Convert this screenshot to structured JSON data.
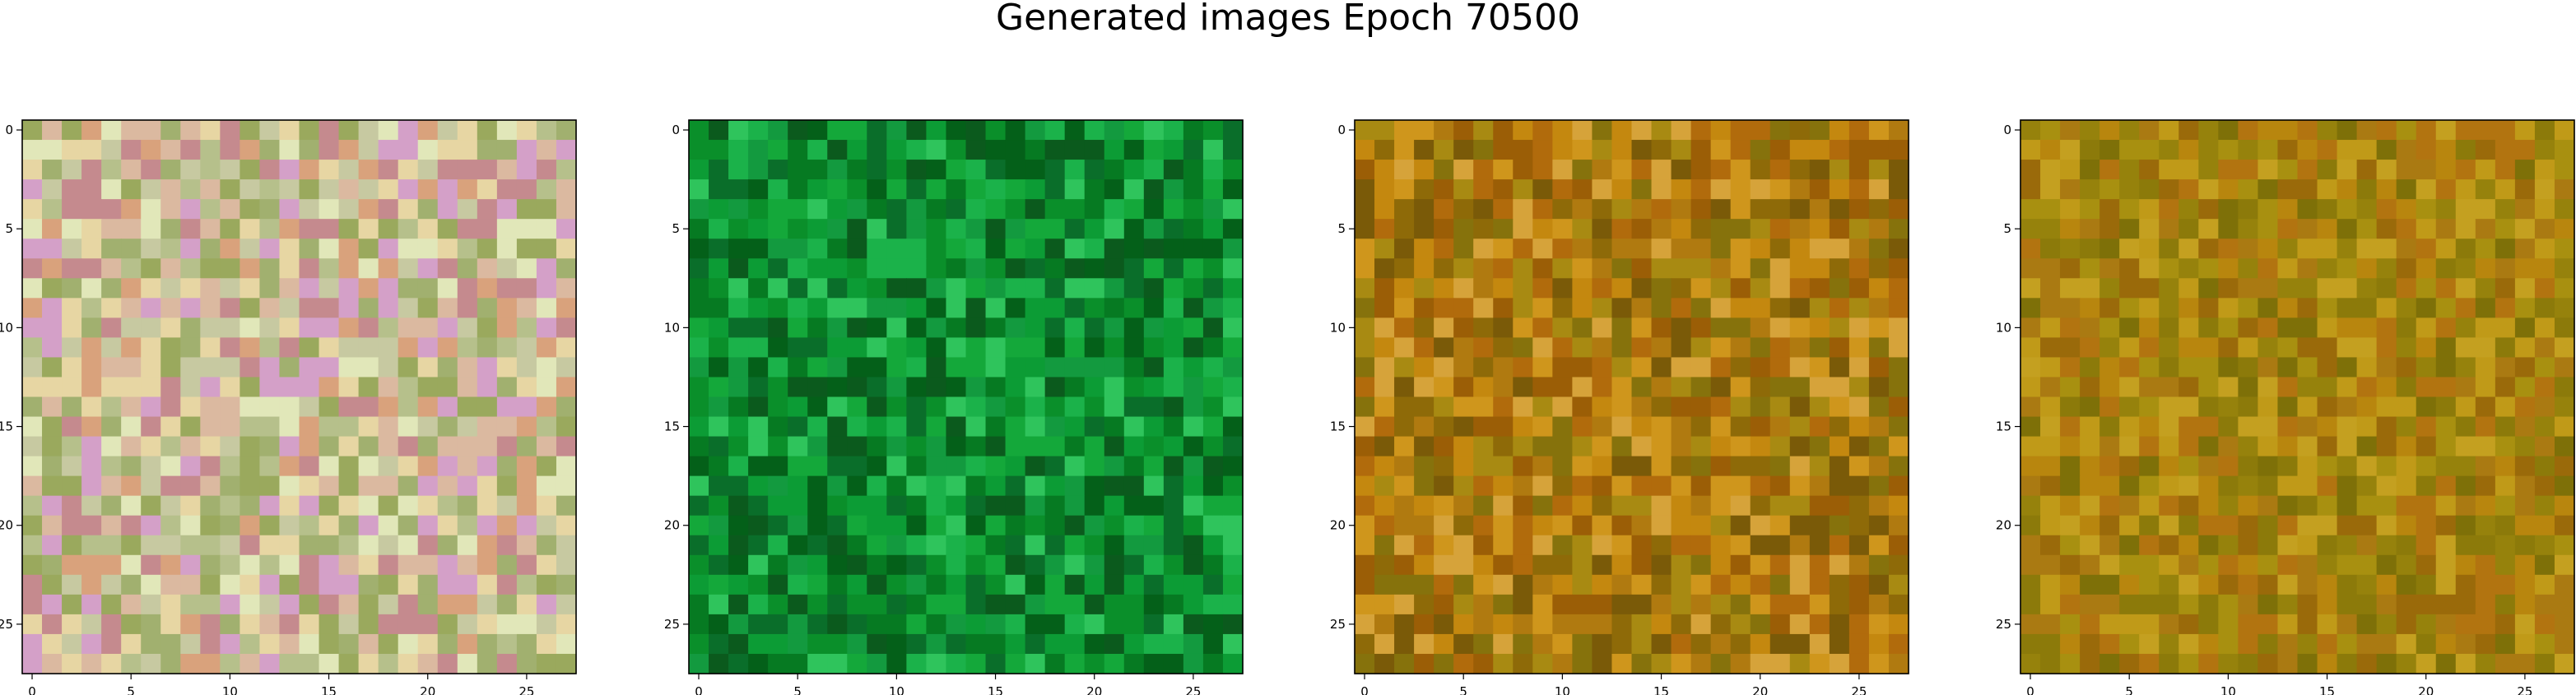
{
  "title": "Generated images Epoch 70500",
  "chart_data": [
    {
      "type": "heatmap",
      "title": "",
      "xlabel": "",
      "ylabel": "",
      "rows": 28,
      "cols": 28,
      "xlim": [
        -0.5,
        27.5
      ],
      "ylim": [
        27.5,
        -0.5
      ],
      "xticks": [
        "0",
        "5",
        "10",
        "15",
        "20",
        "25"
      ],
      "yticks": [
        "0",
        "5",
        "10",
        "15",
        "20",
        "25"
      ],
      "grid": false,
      "palette": [
        "#c7c9a1",
        "#a1b06f",
        "#dbb9a0",
        "#d9a27c",
        "#e7d6a3",
        "#b6c08b",
        "#c58a8e",
        "#9aa95d",
        "#e1e7b9",
        "#d4a0c8"
      ]
    },
    {
      "type": "heatmap",
      "title": "",
      "xlabel": "",
      "ylabel": "",
      "rows": 28,
      "cols": 28,
      "xlim": [
        -0.5,
        27.5
      ],
      "ylim": [
        27.5,
        -0.5
      ],
      "xticks": [
        "0",
        "5",
        "10",
        "15",
        "20",
        "25"
      ],
      "yticks": [
        "0",
        "5",
        "10",
        "15",
        "20",
        "25"
      ],
      "grid": false,
      "palette": [
        "#0a8f2a",
        "#067a22",
        "#14a83a",
        "#046019",
        "#0c9c35",
        "#1bb24a",
        "#0a6e2a",
        "#2fc45c",
        "#0b5a1d",
        "#139a3f"
      ]
    },
    {
      "type": "heatmap",
      "title": "",
      "xlabel": "",
      "ylabel": "",
      "rows": 28,
      "cols": 28,
      "xlim": [
        -0.5,
        27.5
      ],
      "ylim": [
        27.5,
        -0.5
      ],
      "xticks": [
        "0",
        "5",
        "10",
        "15",
        "20",
        "25"
      ],
      "yticks": [
        "0",
        "5",
        "10",
        "15",
        "20",
        "25"
      ],
      "grid": false,
      "palette": [
        "#b07a10",
        "#8e6a08",
        "#c4880f",
        "#9b5e06",
        "#a88a12",
        "#7a5a08",
        "#cf961c",
        "#b16b0c",
        "#86720c",
        "#d6a33a"
      ]
    },
    {
      "type": "heatmap",
      "title": "",
      "xlabel": "",
      "ylabel": "",
      "rows": 28,
      "cols": 28,
      "xlim": [
        -0.5,
        27.5
      ],
      "ylim": [
        27.5,
        -0.5
      ],
      "xticks": [
        "0",
        "5",
        "10",
        "15",
        "20",
        "25"
      ],
      "yticks": [
        "0",
        "5",
        "10",
        "15",
        "20",
        "25"
      ],
      "grid": false,
      "palette": [
        "#a89010",
        "#8c7a0a",
        "#b8860e",
        "#9a6a0a",
        "#c09a18",
        "#7e7008",
        "#aa7a12",
        "#c4a020",
        "#96820c",
        "#b27410"
      ]
    }
  ]
}
